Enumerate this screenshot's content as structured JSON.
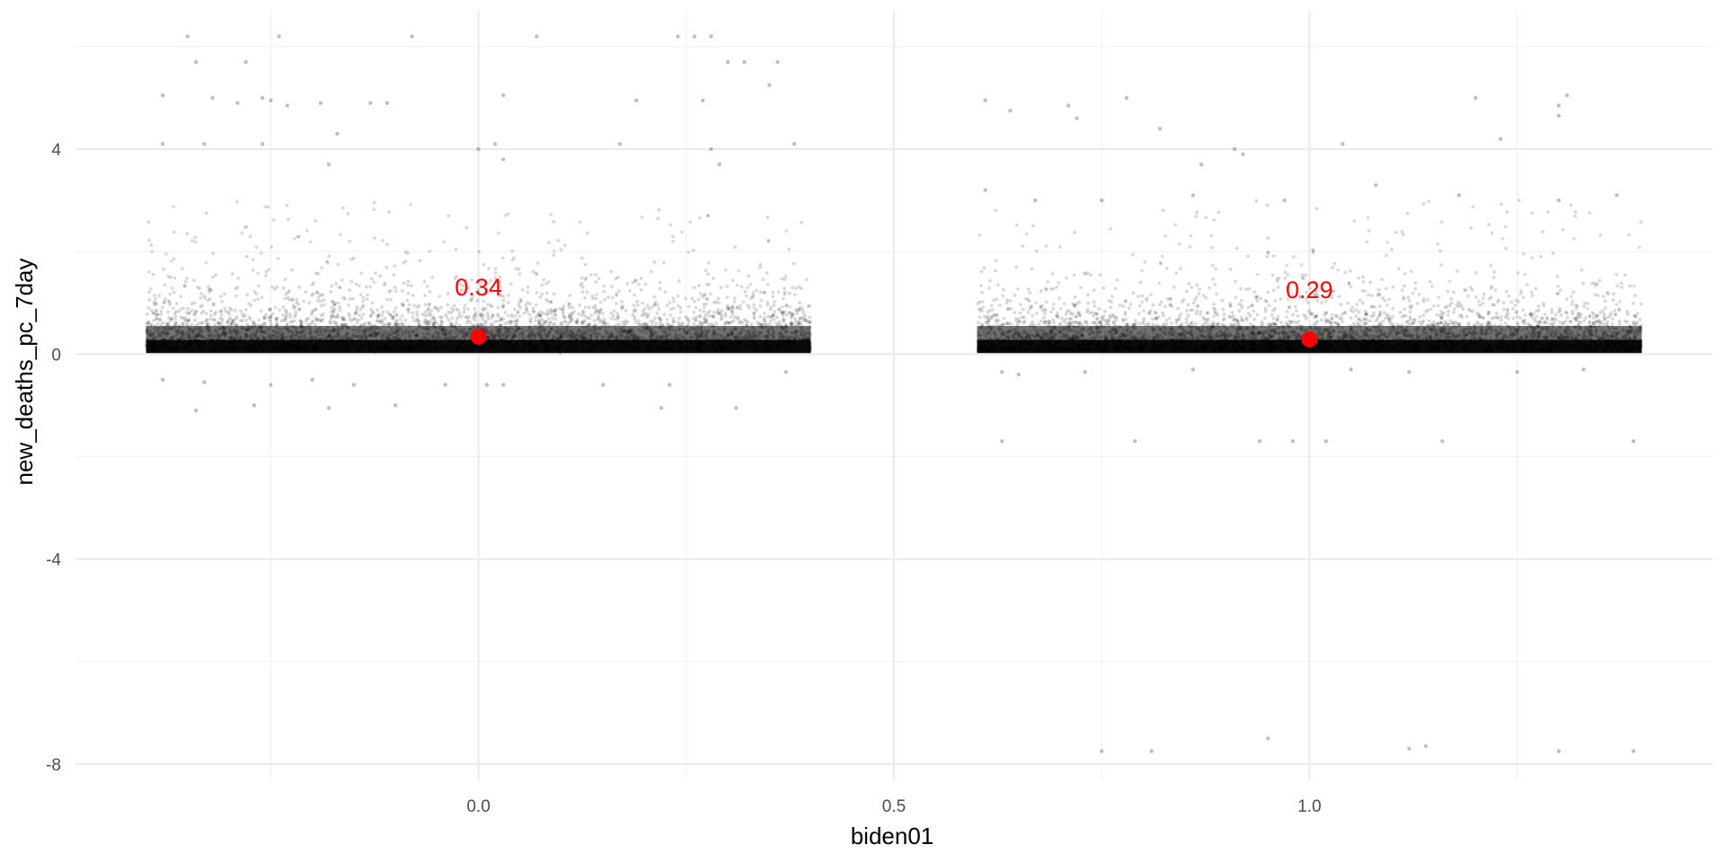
{
  "chart_data": {
    "type": "scatter",
    "xlabel": "biden01",
    "ylabel": "new_deaths_pc_7day",
    "xlim": [
      -0.485,
      1.485
    ],
    "ylim": [
      -8.3,
      6.7
    ],
    "x_ticks": [
      0.0,
      0.5,
      1.0
    ],
    "x_tick_labels": [
      "0.0",
      "0.5",
      "1.0"
    ],
    "y_ticks": [
      -8,
      -4,
      0,
      4
    ],
    "y_tick_labels": [
      "-8",
      "-4",
      "0",
      "4"
    ],
    "grid": true,
    "legend": "none",
    "jitter_width": 0.4,
    "groups": [
      {
        "x": 0,
        "mean": 0.34,
        "mean_label": "0.34",
        "outliers": [
          [
            -0.35,
            6.2
          ],
          [
            -0.34,
            5.7
          ],
          [
            -0.38,
            5.05
          ],
          [
            -0.32,
            5.0
          ],
          [
            -0.29,
            4.9
          ],
          [
            -0.28,
            5.7
          ],
          [
            -0.26,
            5.0
          ],
          [
            -0.25,
            4.95
          ],
          [
            -0.23,
            4.85
          ],
          [
            -0.19,
            4.9
          ],
          [
            -0.13,
            4.9
          ],
          [
            -0.11,
            4.9
          ],
          [
            -0.24,
            6.2
          ],
          [
            -0.08,
            6.2
          ],
          [
            0.07,
            6.2
          ],
          [
            0.24,
            6.2
          ],
          [
            0.26,
            6.2
          ],
          [
            0.28,
            6.2
          ],
          [
            0.03,
            5.05
          ],
          [
            0.3,
            5.7
          ],
          [
            0.32,
            5.7
          ],
          [
            0.27,
            4.95
          ],
          [
            0.36,
            5.7
          ],
          [
            0.35,
            5.25
          ],
          [
            0.38,
            4.1
          ],
          [
            -0.38,
            4.1
          ],
          [
            -0.33,
            4.1
          ],
          [
            -0.26,
            4.1
          ],
          [
            0.0,
            4.0
          ],
          [
            0.02,
            4.1
          ],
          [
            0.03,
            3.8
          ],
          [
            0.28,
            4.0
          ],
          [
            0.29,
            3.7
          ],
          [
            0.17,
            4.1
          ],
          [
            0.19,
            4.95
          ],
          [
            -0.17,
            4.3
          ],
          [
            -0.18,
            3.7
          ],
          [
            -0.34,
            -1.1
          ],
          [
            -0.27,
            -1.0
          ],
          [
            -0.18,
            -1.05
          ],
          [
            -0.1,
            -1.0
          ],
          [
            0.22,
            -1.05
          ],
          [
            0.31,
            -1.05
          ],
          [
            -0.38,
            -0.5
          ],
          [
            -0.33,
            -0.55
          ],
          [
            -0.25,
            -0.6
          ],
          [
            -0.2,
            -0.5
          ],
          [
            -0.15,
            -0.6
          ],
          [
            -0.04,
            -0.6
          ],
          [
            0.01,
            -0.6
          ],
          [
            0.03,
            -0.6
          ],
          [
            0.15,
            -0.6
          ],
          [
            0.23,
            -0.6
          ],
          [
            0.37,
            -0.35
          ]
        ]
      },
      {
        "x": 1,
        "mean": 0.29,
        "mean_label": "0.29",
        "outliers": [
          [
            0.61,
            4.95
          ],
          [
            0.64,
            4.75
          ],
          [
            0.71,
            4.85
          ],
          [
            0.72,
            4.6
          ],
          [
            0.78,
            5.0
          ],
          [
            0.82,
            4.4
          ],
          [
            0.87,
            3.7
          ],
          [
            0.91,
            4.0
          ],
          [
            0.92,
            3.9
          ],
          [
            1.04,
            4.1
          ],
          [
            1.2,
            5.0
          ],
          [
            1.23,
            4.2
          ],
          [
            1.3,
            4.85
          ],
          [
            1.31,
            5.05
          ],
          [
            1.3,
            4.65
          ],
          [
            0.75,
            -7.75
          ],
          [
            0.81,
            -7.75
          ],
          [
            0.95,
            -7.5
          ],
          [
            1.12,
            -7.7
          ],
          [
            1.14,
            -7.65
          ],
          [
            1.3,
            -7.75
          ],
          [
            1.39,
            -7.75
          ],
          [
            0.63,
            -1.7
          ],
          [
            0.79,
            -1.7
          ],
          [
            0.94,
            -1.7
          ],
          [
            0.98,
            -1.7
          ],
          [
            1.02,
            -1.7
          ],
          [
            1.16,
            -1.7
          ],
          [
            1.39,
            -1.7
          ],
          [
            0.63,
            -0.35
          ],
          [
            0.65,
            -0.4
          ],
          [
            0.73,
            -0.35
          ],
          [
            0.86,
            -0.3
          ],
          [
            1.05,
            -0.3
          ],
          [
            1.12,
            -0.35
          ],
          [
            1.25,
            -0.35
          ],
          [
            1.33,
            -0.3
          ],
          [
            0.61,
            3.2
          ],
          [
            0.67,
            3.0
          ],
          [
            0.75,
            3.0
          ],
          [
            0.86,
            3.1
          ],
          [
            0.97,
            3.0
          ],
          [
            1.08,
            3.3
          ],
          [
            1.18,
            3.1
          ],
          [
            1.3,
            3.0
          ],
          [
            1.37,
            3.1
          ]
        ]
      }
    ],
    "point_color": "#000000",
    "point_alpha": 0.15,
    "mean_color": "#ff0000"
  }
}
